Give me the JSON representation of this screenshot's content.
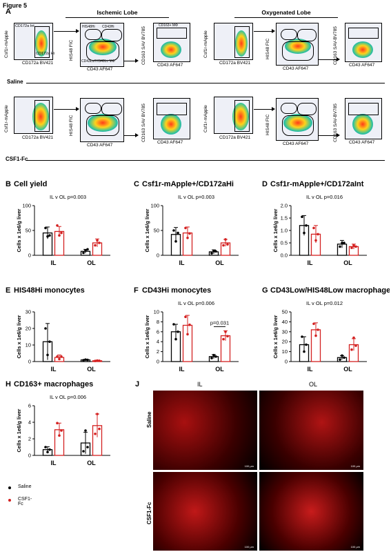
{
  "figure_label": "Figure 5",
  "panel_a": {
    "label": "A",
    "lobes": [
      {
        "title": "Ischemic Lobe"
      },
      {
        "title": "Oxygenated Lobe"
      }
    ],
    "conditions": [
      {
        "name": "Saline"
      },
      {
        "name": "CSF1-Fc"
      }
    ],
    "axes": {
      "csf1r": "Csf1r-mApple",
      "cd172a": "CD172a BV421",
      "his48": "HIS48 FIC",
      "cd43": "CD43 AF647",
      "cd163": "CD163 SAV-BV785",
      "cd163_alt": "CD163 SAV BV785"
    },
    "gates": {
      "cd172a_int": "CD172a Int",
      "cd172a_hi": "CD172a Hi",
      "his48hi": "HIS48Hi",
      "cd43hi": "CD43Hi",
      "cd43lo": "CD43Lo/HIS48Lo MΦ",
      "cd163pos": "CD163+ MΦ"
    }
  },
  "legend": {
    "saline": "Saline",
    "csf1": "CSF1-Fc",
    "saline_color": "#000000",
    "csf1_color": "#d42020"
  },
  "chart_data": [
    {
      "id": "B",
      "panel_label": "B",
      "title": "Cell yield",
      "type": "bar",
      "ylabel": "Cells x 1e6/g liver",
      "ylim": [
        0,
        100
      ],
      "yticks": [
        "0",
        "50",
        "100"
      ],
      "yticks_v": [
        0,
        50,
        100
      ],
      "categories": [
        "IL",
        "OL"
      ],
      "stat": "IL v OL p=0.003",
      "bracket": null,
      "series": [
        {
          "name": "Saline",
          "values": [
            45,
            8
          ],
          "err": [
            12,
            4
          ],
          "points": [
            [
              55,
              38,
              40
            ],
            [
              5,
              10,
              12
            ]
          ]
        },
        {
          "name": "CSF1-Fc",
          "values": [
            48,
            25
          ],
          "err": [
            10,
            8
          ],
          "points": [
            [
              60,
              40,
              45
            ],
            [
              20,
              30,
              25
            ]
          ]
        }
      ]
    },
    {
      "id": "C",
      "panel_label": "C",
      "title": "Csf1r-mApple+/CD172aHi",
      "type": "bar",
      "ylabel": "Cells x 1e6/g liver",
      "ylim": [
        0,
        100
      ],
      "yticks": [
        "0",
        "50",
        "100"
      ],
      "yticks_v": [
        0,
        50,
        100
      ],
      "categories": [
        "IL",
        "OL"
      ],
      "stat": "IL v OL p=0.003",
      "bracket": null,
      "series": [
        {
          "name": "Saline",
          "values": [
            42,
            7
          ],
          "err": [
            14,
            4
          ],
          "points": [
            [
              50,
              28,
              45
            ],
            [
              4,
              9,
              8
            ]
          ]
        },
        {
          "name": "CSF1-Fc",
          "values": [
            45,
            25
          ],
          "err": [
            12,
            7
          ],
          "points": [
            [
              55,
              35,
              44
            ],
            [
              20,
              32,
              22
            ]
          ]
        }
      ]
    },
    {
      "id": "D",
      "panel_label": "D",
      "title": "Csf1r-mApple+/CD172aInt",
      "type": "bar",
      "ylabel": "Cells x 1e6/g liver",
      "ylim": [
        0,
        2.0
      ],
      "yticks": [
        "0.0",
        "0.5",
        "1.0",
        "1.5",
        "2.0"
      ],
      "yticks_v": [
        0,
        0.5,
        1.0,
        1.5,
        2.0
      ],
      "categories": [
        "IL",
        "OL"
      ],
      "stat": "IL v OL p=0.016",
      "bracket": null,
      "series": [
        {
          "name": "Saline",
          "values": [
            1.2,
            0.45
          ],
          "err": [
            0.4,
            0.15
          ],
          "points": [
            [
              1.55,
              0.9,
              1.2
            ],
            [
              0.35,
              0.5,
              0.5
            ]
          ]
        },
        {
          "name": "CSF1-Fc",
          "values": [
            0.85,
            0.35
          ],
          "err": [
            0.35,
            0.1
          ],
          "points": [
            [
              1.1,
              0.6,
              0.85
            ],
            [
              0.3,
              0.4,
              0.35
            ]
          ]
        }
      ]
    },
    {
      "id": "E",
      "panel_label": "E",
      "title": "HIS48Hi monocytes",
      "type": "bar",
      "ylabel": "Cells x 1e6/g liver",
      "ylim": [
        0,
        30
      ],
      "yticks": [
        "0",
        "10",
        "20",
        "30"
      ],
      "yticks_v": [
        0,
        10,
        20,
        30
      ],
      "categories": [
        "IL",
        "OL"
      ],
      "stat": "",
      "bracket": null,
      "series": [
        {
          "name": "Saline",
          "values": [
            12,
            1.0
          ],
          "err": [
            11,
            0.3
          ],
          "points": [
            [
              20,
              4,
              12
            ],
            [
              0.8,
              1.2,
              1.0
            ]
          ]
        },
        {
          "name": "CSF1-Fc",
          "values": [
            2.5,
            0.5
          ],
          "err": [
            1.5,
            0.3
          ],
          "points": [
            [
              3,
              1.5,
              3
            ],
            [
              0.4,
              0.6,
              0.5
            ]
          ]
        }
      ]
    },
    {
      "id": "F",
      "panel_label": "F",
      "title": "CD43Hi monocytes",
      "type": "bar",
      "ylabel": "Cells x 1e6/g liver",
      "ylim": [
        0,
        10
      ],
      "yticks": [
        "0",
        "2",
        "4",
        "6",
        "8",
        "10"
      ],
      "yticks_v": [
        0,
        2,
        4,
        6,
        8,
        10
      ],
      "categories": [
        "IL",
        "OL"
      ],
      "stat": "IL v OL p=0.006",
      "bracket": {
        "text": "p=0.031",
        "group": 1
      },
      "series": [
        {
          "name": "Saline",
          "values": [
            6,
            1
          ],
          "err": [
            1.5,
            0.4
          ],
          "points": [
            [
              7.5,
              4.5,
              6
            ],
            [
              0.7,
              1.3,
              1
            ]
          ]
        },
        {
          "name": "CSF1-Fc",
          "values": [
            7.3,
            5.2
          ],
          "err": [
            2.0,
            1.0
          ],
          "points": [
            [
              9,
              5.5,
              7.4
            ],
            [
              4.5,
              6,
              5.1
            ]
          ]
        }
      ]
    },
    {
      "id": "G",
      "panel_label": "G",
      "title": "CD43Low/HIS48Low macrophages",
      "type": "bar",
      "ylabel": "Cells x 1e6/g liver",
      "ylim": [
        0,
        50
      ],
      "yticks": [
        "0",
        "10",
        "20",
        "30",
        "40",
        "50"
      ],
      "yticks_v": [
        0,
        10,
        20,
        30,
        40,
        50
      ],
      "categories": [
        "IL",
        "OL"
      ],
      "stat": "IL v OL p=0.012",
      "bracket": null,
      "series": [
        {
          "name": "Saline",
          "values": [
            17,
            4
          ],
          "err": [
            8,
            2
          ],
          "points": [
            [
              25,
              10,
              17
            ],
            [
              2,
              6,
              4
            ]
          ]
        },
        {
          "name": "CSF1-Fc",
          "values": [
            32,
            17
          ],
          "err": [
            7,
            6
          ],
          "points": [
            [
              38,
              26,
              32
            ],
            [
              12,
              24,
              16
            ]
          ]
        }
      ]
    },
    {
      "id": "H",
      "panel_label": "H",
      "title": "CD163+ macrophages",
      "type": "bar",
      "ylabel": "Cells x 1e6/g liver",
      "ylim": [
        0,
        6
      ],
      "yticks": [
        "0",
        "2",
        "4",
        "6"
      ],
      "yticks_v": [
        0,
        2,
        4,
        6
      ],
      "categories": [
        "IL",
        "OL"
      ],
      "stat": "IL v OL p=0.006",
      "bracket": null,
      "series": [
        {
          "name": "Saline",
          "values": [
            0.7,
            1.5
          ],
          "err": [
            0.35,
            1.3
          ],
          "points": [
            [
              1.0,
              0.4,
              0.7
            ],
            [
              0.5,
              3.0,
              1.0
            ]
          ]
        },
        {
          "name": "CSF1-Fc",
          "values": [
            3.1,
            3.6
          ],
          "err": [
            0.8,
            1.4
          ],
          "points": [
            [
              3.9,
              2.4,
              3.0
            ],
            [
              2.6,
              5.0,
              3.2
            ]
          ]
        }
      ]
    }
  ],
  "panel_j": {
    "label": "J",
    "col_labels": [
      "IL",
      "OL"
    ],
    "row_labels": [
      "Saline",
      "CSF1-Fc"
    ],
    "scale_bar": "100 µm"
  }
}
